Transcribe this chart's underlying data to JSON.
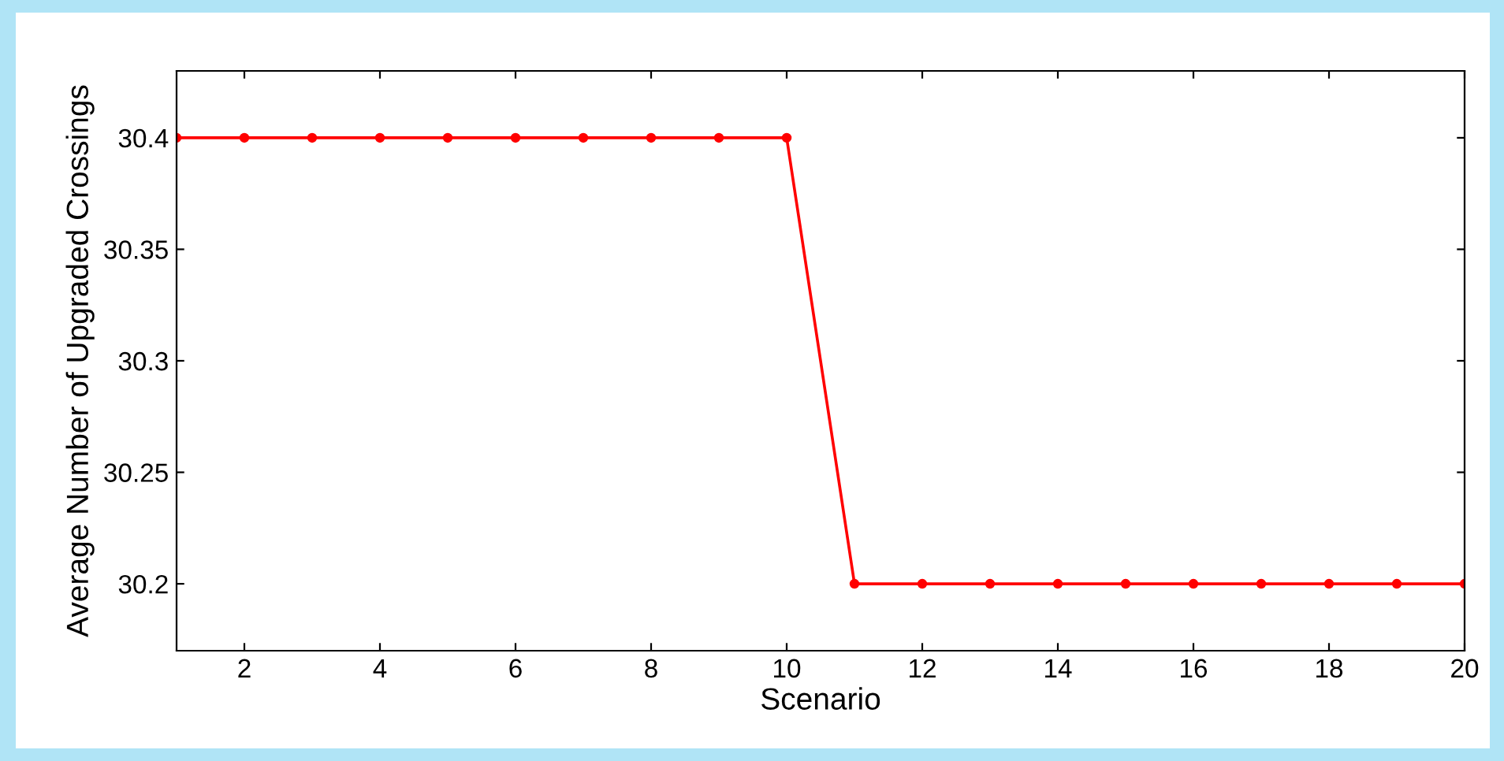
{
  "chart_data": {
    "type": "line",
    "xlabel": "Scenario",
    "ylabel": "Average Number of Upgraded Crossings",
    "x": [
      1,
      2,
      3,
      4,
      5,
      6,
      7,
      8,
      9,
      10,
      11,
      12,
      13,
      14,
      15,
      16,
      17,
      18,
      19,
      20
    ],
    "series": [
      {
        "color": "#ff0000",
        "values": [
          30.4,
          30.4,
          30.4,
          30.4,
          30.4,
          30.4,
          30.4,
          30.4,
          30.4,
          30.4,
          30.2,
          30.2,
          30.2,
          30.2,
          30.2,
          30.2,
          30.2,
          30.2,
          30.2,
          30.2
        ]
      }
    ],
    "xlim": [
      1,
      20
    ],
    "xticks": [
      2,
      4,
      6,
      8,
      10,
      12,
      14,
      16,
      18,
      20
    ],
    "ylim": [
      30.17,
      30.43
    ],
    "yticks": [
      30.2,
      30.25,
      30.3,
      30.35,
      30.4
    ],
    "grid": false,
    "legend": false,
    "marker": "circle",
    "line_style": "solid"
  }
}
